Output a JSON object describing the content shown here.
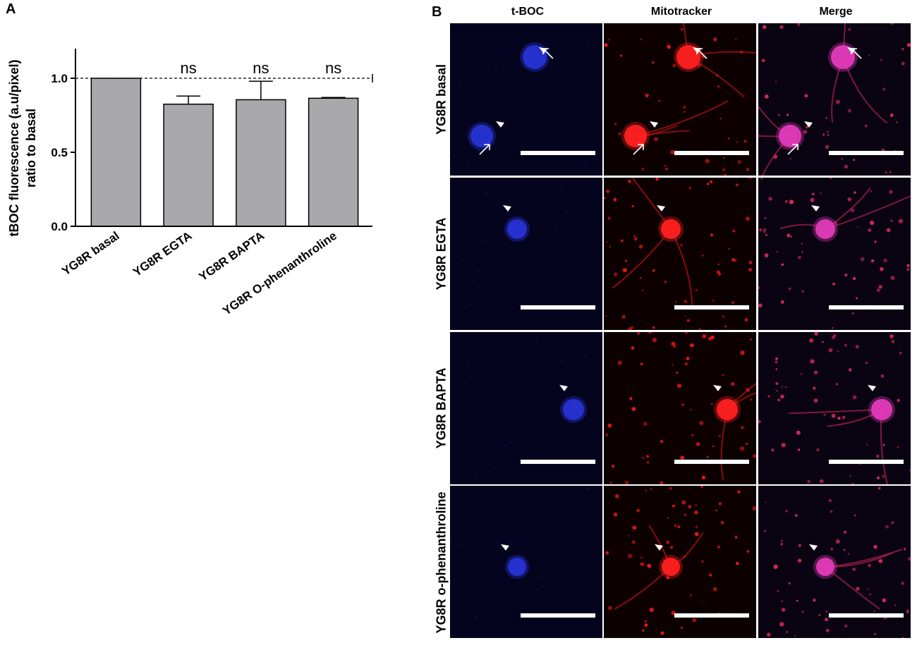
{
  "panel_labels": {
    "a": "A",
    "b": "B"
  },
  "chart_data": {
    "type": "bar",
    "categories": [
      "YG8R basal",
      "YG8R EGTA",
      "YG8R BAPTA",
      "YG8R O-phenanthroline"
    ],
    "values": [
      1.0,
      0.825,
      0.855,
      0.865
    ],
    "errors": [
      0.0,
      0.055,
      0.125,
      0.005
    ],
    "annotations": [
      "",
      "ns",
      "ns",
      "ns"
    ],
    "title": "",
    "xlabel": "",
    "ylabel_line1": "tBOC fluorescence (a.u/pixel)",
    "ylabel_line2": "ratio to basal",
    "ylim": [
      0,
      1.2
    ],
    "yticks": [
      0.0,
      0.5,
      1.0
    ],
    "ytick_labels": [
      "0.0",
      "0.5",
      "1.0"
    ],
    "reference_line": 1.0,
    "bar_color": "#a9a9ad",
    "grid": false
  },
  "microscopy": {
    "columns": [
      "t-BOC",
      "Mitotracker",
      "Merge"
    ],
    "rows": [
      "YG8R basal",
      "YG8R EGTA",
      "YG8R BAPTA",
      "YG8R o-phenanthroline"
    ],
    "colors": {
      "tboc": "#2a35e0",
      "mito": "#ff2020",
      "merge": "#e23bb8"
    }
  }
}
